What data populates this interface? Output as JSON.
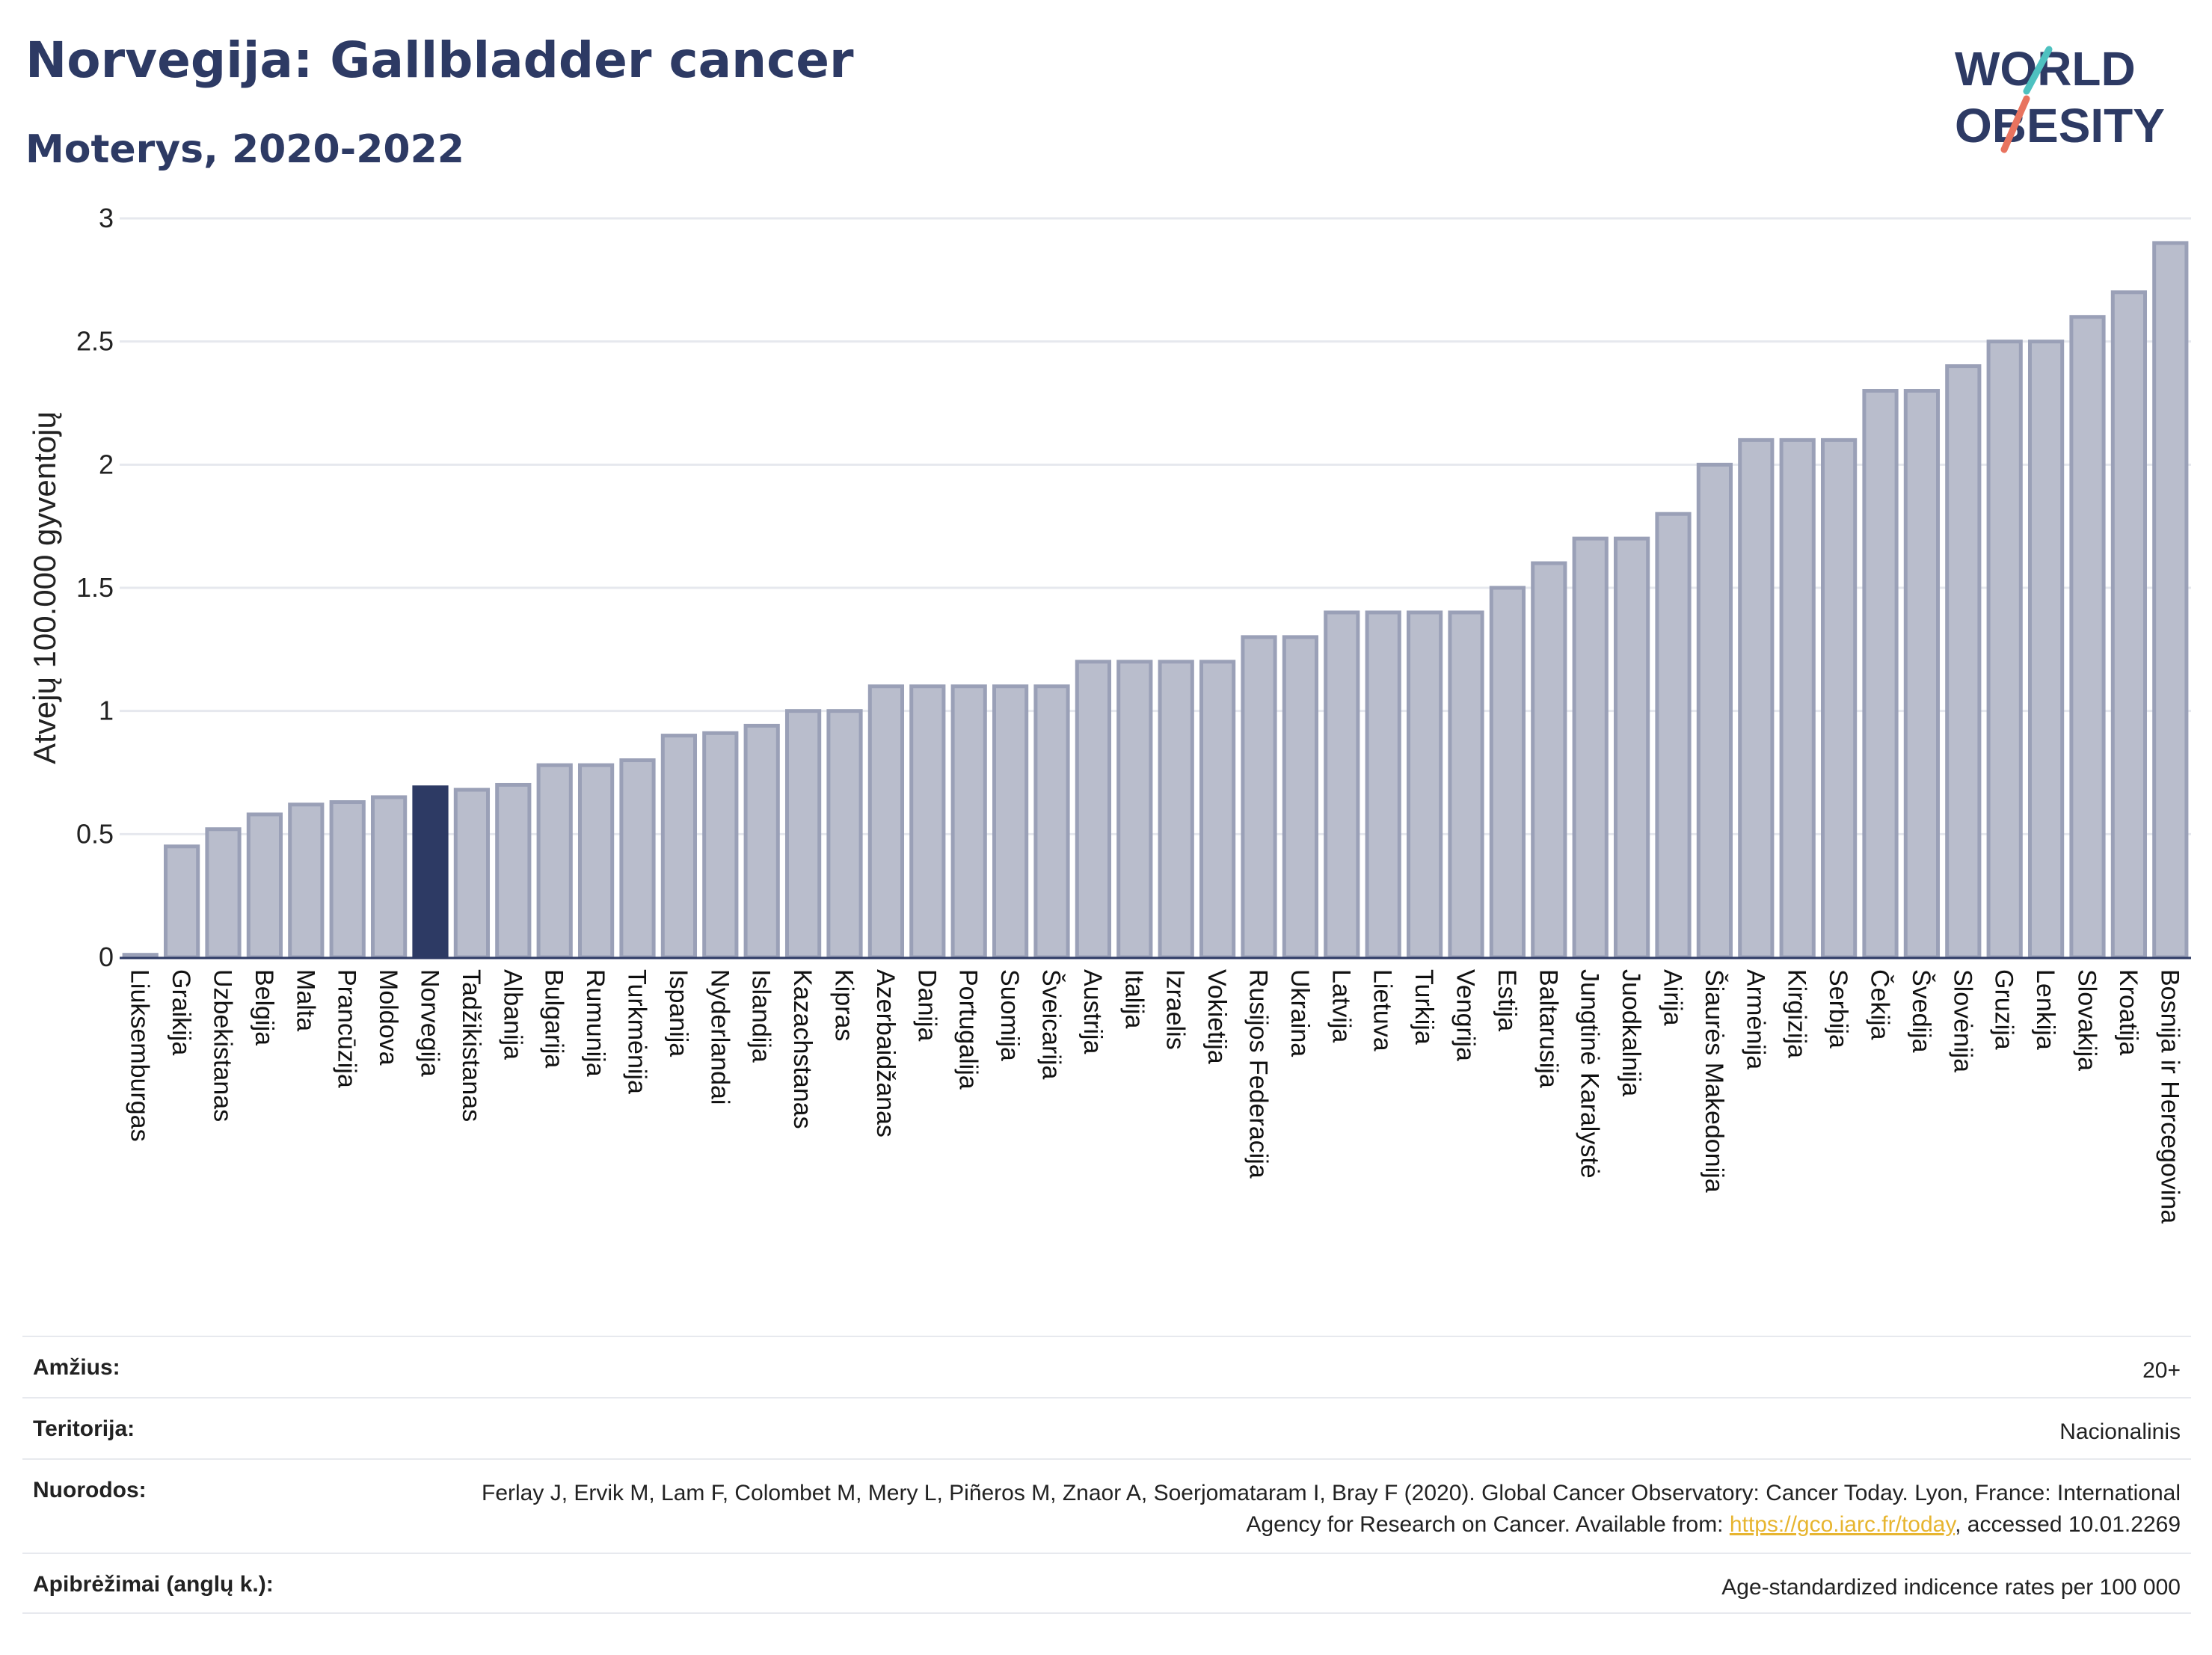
{
  "header": {
    "title": "Norvegija: Gallbladder cancer",
    "subtitle": "Moterys, 2020-2022"
  },
  "logo": {
    "line1": "WORLD",
    "line2": "OBESITY"
  },
  "colors": {
    "bar": "#b9bdcc",
    "bar_stroke": "#9aa0b7",
    "highlight": "#2d3a64",
    "grid": "#e6e8ee",
    "title": "#2d3a64",
    "link": "#e7b530",
    "logo_teal": "#4ec1c0",
    "logo_coral": "#e8735f"
  },
  "chart_data": {
    "type": "bar",
    "title": "Norvegija: Gallbladder cancer",
    "subtitle": "Moterys, 2020-2022",
    "ylabel": "Atvejų 100.000 gyventojų",
    "xlabel": "",
    "ylim": [
      0,
      3
    ],
    "yticks": [
      "0",
      "0.5",
      "1",
      "1.5",
      "2",
      "2.5",
      "3"
    ],
    "ytick_values": [
      0,
      0.5,
      1,
      1.5,
      2,
      2.5,
      3
    ],
    "grid": true,
    "highlight": "Norvegija",
    "categories": [
      "Liuksemburgas",
      "Graikija",
      "Uzbekistanas",
      "Belgija",
      "Malta",
      "Prancūzija",
      "Moldova",
      "Norvegija",
      "Tadžikistanas",
      "Albanija",
      "Bulgarija",
      "Rumunija",
      "Turkmėnija",
      "Ispanija",
      "Nyderlandai",
      "Islandija",
      "Kazachstanas",
      "Kipras",
      "Azerbaidžanas",
      "Danija",
      "Portugalija",
      "Suomija",
      "Šveicarija",
      "Austrija",
      "Italija",
      "Izraelis",
      "Vokietija",
      "Rusijos Federacija",
      "Ukraina",
      "Latvija",
      "Lietuva",
      "Turkija",
      "Vengrija",
      "Estija",
      "Baltarusija",
      "Jungtinė Karalystė",
      "Juodkalnija",
      "Airija",
      "Šiaurės Makedonija",
      "Armėnija",
      "Kirgizija",
      "Serbija",
      "Čekija",
      "Švedija",
      "Slovėnija",
      "Gruzija",
      "Lenkija",
      "Slovakija",
      "Kroatija",
      "Bosnija ir Hercegovina"
    ],
    "values": [
      0.01,
      0.45,
      0.52,
      0.58,
      0.62,
      0.63,
      0.65,
      0.69,
      0.68,
      0.7,
      0.78,
      0.78,
      0.8,
      0.9,
      0.91,
      0.94,
      1.0,
      1.0,
      1.1,
      1.1,
      1.1,
      1.1,
      1.1,
      1.2,
      1.2,
      1.2,
      1.2,
      1.3,
      1.3,
      1.4,
      1.4,
      1.4,
      1.4,
      1.5,
      1.6,
      1.7,
      1.7,
      1.8,
      2.0,
      2.1,
      2.1,
      2.1,
      2.3,
      2.3,
      2.4,
      2.5,
      2.5,
      2.6,
      2.7,
      2.9
    ]
  },
  "info": {
    "age_label": "Amžius:",
    "age_value": "20+",
    "territory_label": "Teritorija:",
    "territory_value": "Nacionalinis",
    "refs_label": "Nuorodos:",
    "refs_text_1": "Ferlay J, Ervik M, Lam F, Colombet M, Mery L, Piñeros M, Znaor A, Soerjomataram I, Bray F (2020). Global Cancer Observatory: Cancer Today. Lyon, France: International Agency for Research on Cancer. Available from: ",
    "refs_link": "https://gco.iarc.fr/today",
    "refs_text_2": ", accessed 10.01.2269",
    "defs_label": "Apibrėžimai (anglų k.):",
    "defs_value": "Age-standardized indicence rates per 100 000"
  }
}
